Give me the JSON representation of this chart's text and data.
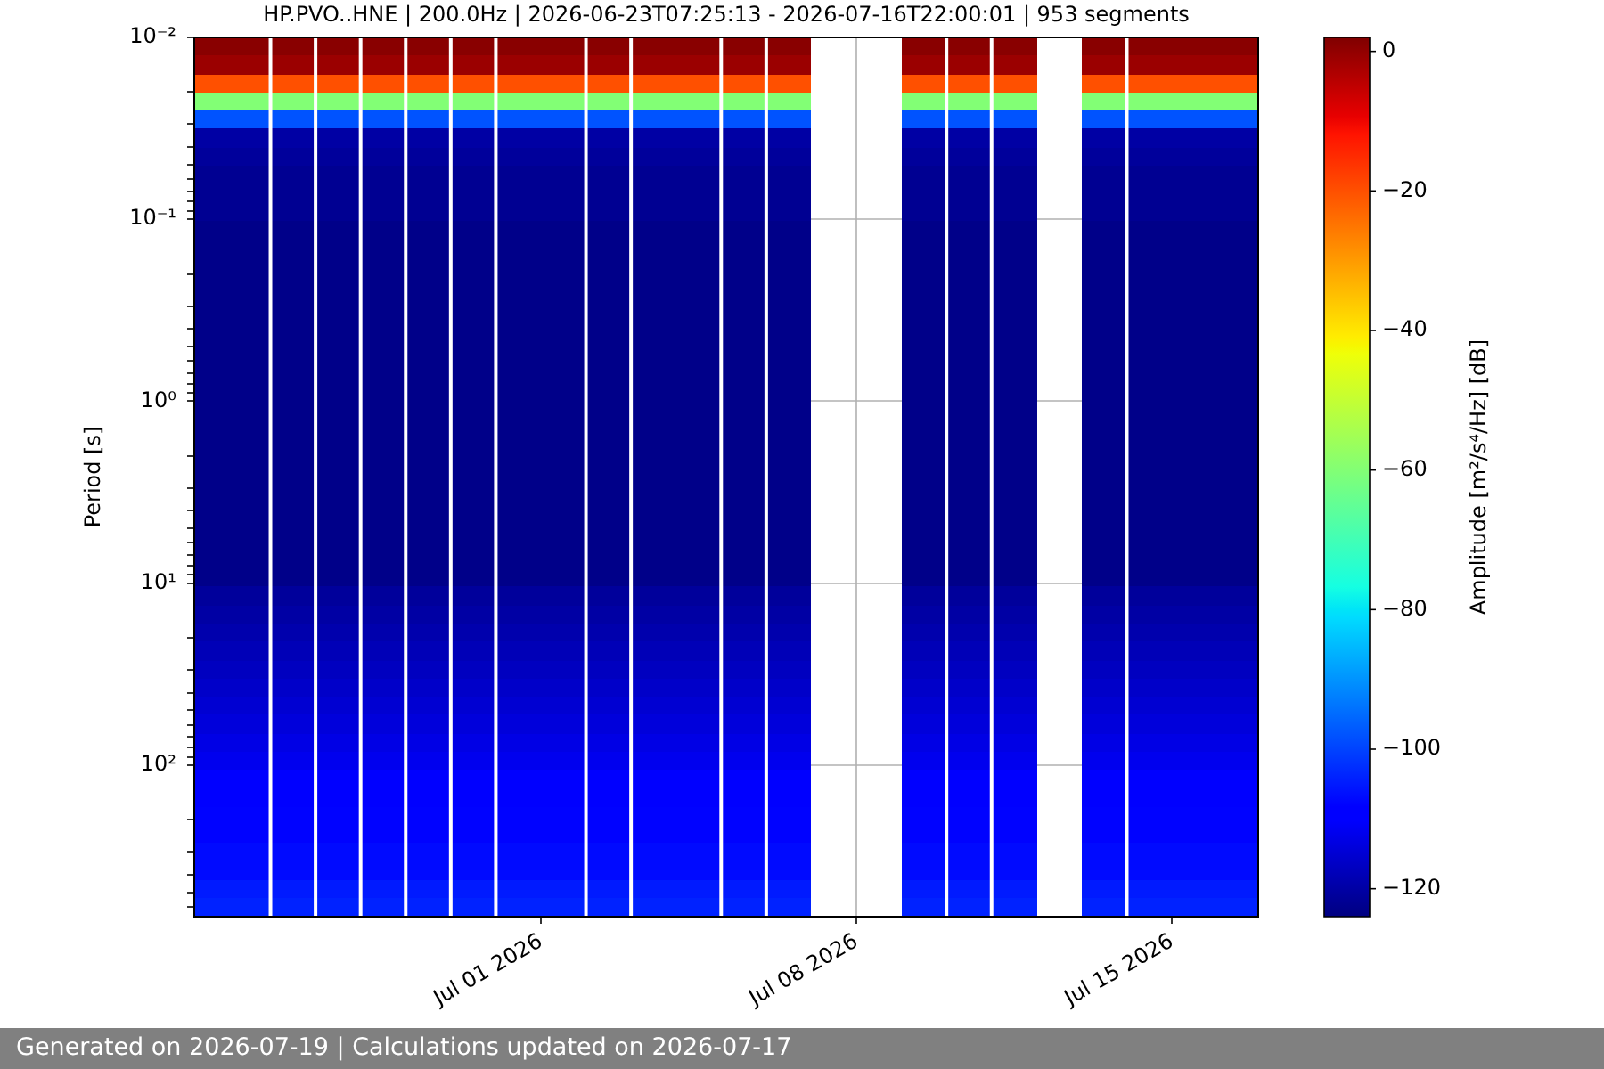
{
  "chart_data": {
    "type": "heatmap",
    "title": "HP.PVO..HNE | 200.0Hz | 2026-06-23T07:25:13 - 2026-07-16T22:00:01 | 953 segments",
    "ylabel": "Period [s]",
    "clabel": "Amplitude [m²/s⁴/Hz] [dB]",
    "annotations": [
      "Generated on 2026-07-19 | Calculations updated on 2026-07-17"
    ],
    "x": [
      "2026-06-23T12:00",
      "2026-06-24T12:00",
      "2026-06-25T12:00",
      "2026-06-26T12:00",
      "2026-06-27T12:00",
      "2026-06-28T12:00",
      "2026-06-29T12:00",
      "2026-06-30T12:00",
      "2026-07-01T12:00",
      "2026-07-02T12:00",
      "2026-07-03T12:00",
      "2026-07-04T12:00",
      "2026-07-05T12:00",
      "2026-07-06T12:00",
      "2026-07-07T12:00",
      "2026-07-08T12:00",
      "2026-07-09T12:00",
      "2026-07-10T12:00",
      "2026-07-11T12:00",
      "2026-07-12T12:00",
      "2026-07-13T12:00",
      "2026-07-14T12:00",
      "2026-07-15T12:00",
      "2026-07-16T12:00"
    ],
    "cells": [
      [
        1,
        1,
        1,
        1,
        1,
        1,
        1,
        1,
        1,
        1,
        1,
        1,
        1,
        1,
        null,
        null,
        1,
        1,
        1,
        null,
        1,
        1,
        1,
        1
      ],
      [
        -1,
        -1,
        -1,
        -1,
        -1,
        -1,
        -1,
        -1,
        -1,
        -1,
        -1,
        -1,
        -1,
        -1,
        null,
        null,
        -1,
        -1,
        -1,
        null,
        -1,
        -1,
        -1,
        -1
      ],
      [
        -20,
        -20,
        -20,
        -20,
        -20,
        -20,
        -20,
        -20,
        -20,
        -20,
        -20,
        -20,
        -20,
        -20,
        null,
        null,
        -20,
        -20,
        -20,
        null,
        -20,
        -20,
        -20,
        -20
      ],
      [
        -60,
        -60,
        -60,
        -60,
        -60,
        -60,
        -60,
        -60,
        -60,
        -60,
        -60,
        -60,
        -60,
        -60,
        null,
        null,
        -60,
        -60,
        -60,
        null,
        -60,
        -60,
        -60,
        -60
      ],
      [
        -98,
        -98,
        -98,
        -98,
        -98,
        -98,
        -98,
        -98,
        -98,
        -98,
        -98,
        -98,
        -98,
        -98,
        null,
        null,
        -98,
        -98,
        -98,
        null,
        -98,
        -98,
        -98,
        -98
      ],
      [
        -120,
        -120,
        -120,
        -120,
        -120,
        -120,
        -120,
        -120,
        -120,
        -120,
        -120,
        -120,
        -120,
        -120,
        null,
        null,
        -120,
        -120,
        -120,
        null,
        -120,
        -120,
        -120,
        -120
      ],
      [
        -121,
        -121,
        -121,
        -121,
        -121,
        -121,
        -121,
        -121,
        -121,
        -121,
        -121,
        -121,
        -121,
        -121,
        null,
        null,
        -121,
        -121,
        -121,
        null,
        -121,
        -121,
        -121,
        -121
      ],
      [
        -122,
        -122,
        -122,
        -122,
        -122,
        -122,
        -122,
        -122,
        -122,
        -122,
        -122,
        -122,
        -122,
        -122,
        null,
        null,
        -122,
        -122,
        -122,
        null,
        -122,
        -122,
        -122,
        -122
      ],
      [
        -122,
        -122,
        -122,
        -122,
        -122,
        -122,
        -122,
        -122,
        -122,
        -122,
        -122,
        -122,
        -122,
        -122,
        null,
        null,
        -122,
        -122,
        -122,
        null,
        -122,
        -122,
        -122,
        -122
      ],
      [
        -122,
        -122,
        -122,
        -122,
        -122,
        -122,
        -122,
        -122,
        -122,
        -122,
        -122,
        -122,
        -122,
        -122,
        null,
        null,
        -122,
        -122,
        -122,
        null,
        -122,
        -122,
        -122,
        -122
      ],
      [
        -123,
        -123,
        -123,
        -123,
        -123,
        -123,
        -123,
        -123,
        -123,
        -123,
        -123,
        -123,
        -123,
        -123,
        null,
        null,
        -123,
        -123,
        -123,
        null,
        -123,
        -123,
        -123,
        -123
      ],
      [
        -123,
        -123,
        -123,
        -123,
        -123,
        -123,
        -123,
        -123,
        -123,
        -123,
        -123,
        -123,
        -123,
        -123,
        null,
        null,
        -123,
        -123,
        -123,
        null,
        -123,
        -123,
        -123,
        -123
      ],
      [
        -123,
        -123,
        -123,
        -123,
        -123,
        -123,
        -123,
        -123,
        -123,
        -123,
        -123,
        -123,
        -123,
        -123,
        null,
        null,
        -123,
        -123,
        -123,
        null,
        -123,
        -123,
        -123,
        -123
      ],
      [
        -123,
        -123,
        -123,
        -123,
        -123,
        -123,
        -123,
        -123,
        -123,
        -123,
        -123,
        -123,
        -123,
        -123,
        null,
        null,
        -123,
        -123,
        -123,
        null,
        -123,
        -123,
        -123,
        -123
      ],
      [
        -123,
        -123,
        -123,
        -123,
        -123,
        -123,
        -123,
        -123,
        -123,
        -123,
        -123,
        -123,
        -123,
        -123,
        null,
        null,
        -123,
        -123,
        -123,
        null,
        -123,
        -123,
        -123,
        -123
      ],
      [
        -123,
        -123,
        -123,
        -123,
        -123,
        -123,
        -123,
        -123,
        -123,
        -123,
        -123,
        -123,
        -123,
        -123,
        null,
        null,
        -123,
        -123,
        -123,
        null,
        -123,
        -123,
        -123,
        -123
      ],
      [
        -123,
        -123,
        -123,
        -123,
        -123,
        -123,
        -123,
        -123,
        -123,
        -123,
        -123,
        -123,
        -123,
        -123,
        null,
        null,
        -123,
        -123,
        -123,
        null,
        -123,
        -123,
        -123,
        -123
      ],
      [
        -123,
        -123,
        -123,
        -123,
        -123,
        -123,
        -123,
        -123,
        -123,
        -123,
        -123,
        -123,
        -123,
        -123,
        null,
        null,
        -123,
        -123,
        -123,
        null,
        -123,
        -123,
        -123,
        -123
      ],
      [
        -123,
        -123,
        -123,
        -123,
        -123,
        -123,
        -123,
        -123,
        -123,
        -123,
        -123,
        -123,
        -123,
        -123,
        null,
        null,
        -123,
        -123,
        -123,
        null,
        -123,
        -123,
        -123,
        -123
      ],
      [
        -123,
        -123,
        -123,
        -123,
        -123,
        -123,
        -123,
        -123,
        -123,
        -123,
        -123,
        -123,
        -123,
        -123,
        null,
        null,
        -123,
        -123,
        -123,
        null,
        -123,
        -123,
        -123,
        -123
      ],
      [
        -123,
        -123,
        -123,
        -123,
        -123,
        -123,
        -123,
        -123,
        -123,
        -123,
        -123,
        -123,
        -123,
        -123,
        null,
        null,
        -123,
        -123,
        -123,
        null,
        -123,
        -123,
        -123,
        -123
      ],
      [
        -123,
        -123,
        -123,
        -123,
        -123,
        -123,
        -123,
        -123,
        -123,
        -123,
        -123,
        -123,
        -123,
        -123,
        null,
        null,
        -123,
        -123,
        -123,
        null,
        -123,
        -123,
        -123,
        -123
      ],
      [
        -123,
        -123,
        -123,
        -123,
        -123,
        -123,
        -123,
        -123,
        -123,
        -123,
        -123,
        -123,
        -123,
        -123,
        null,
        null,
        -123,
        -123,
        -123,
        null,
        -123,
        -123,
        -123,
        -123
      ],
      [
        -123,
        -123,
        -123,
        -123,
        -123,
        -123,
        -123,
        -123,
        -123,
        -123,
        -123,
        -123,
        -123,
        -123,
        null,
        null,
        -123,
        -123,
        -123,
        null,
        -123,
        -123,
        -123,
        -123
      ],
      [
        -123,
        -123,
        -123,
        -123,
        -123,
        -123,
        -123,
        -123,
        -123,
        -123,
        -123,
        -123,
        -123,
        -123,
        null,
        null,
        -123,
        -123,
        -123,
        null,
        -123,
        -123,
        -123,
        -123
      ],
      [
        -123,
        -123,
        -123,
        -123,
        -123,
        -123,
        -123,
        -123,
        -123,
        -123,
        -123,
        -123,
        -123,
        -123,
        null,
        null,
        -123,
        -123,
        -123,
        null,
        -123,
        -123,
        -123,
        -123
      ],
      [
        -123,
        -123,
        -123,
        -123,
        -123,
        -123,
        -123,
        -123,
        -123,
        -123,
        -123,
        -123,
        -123,
        -123,
        null,
        null,
        -123,
        -123,
        -123,
        null,
        -123,
        -123,
        -123,
        -123
      ],
      [
        -123,
        -123,
        -123,
        -123,
        -123,
        -123,
        -123,
        -123,
        -123,
        -123,
        -123,
        -123,
        -123,
        -123,
        null,
        null,
        -123,
        -123,
        -123,
        null,
        -123,
        -123,
        -123,
        -123
      ],
      [
        -123,
        -123,
        -123,
        -123,
        -123,
        -123,
        -123,
        -123,
        -123,
        -123,
        -123,
        -123,
        -123,
        -123,
        null,
        null,
        -123,
        -123,
        -123,
        null,
        -123,
        -123,
        -123,
        -123
      ],
      [
        -123,
        -123,
        -123,
        -123,
        -123,
        -123,
        -123,
        -123,
        -123,
        -123,
        -123,
        -123,
        -123,
        -123,
        null,
        null,
        -123,
        -123,
        -123,
        null,
        -123,
        -123,
        -123,
        -123
      ],
      [
        -121,
        -121,
        -121,
        -121,
        -121,
        -121,
        -121,
        -121,
        -121,
        -121,
        -121,
        -121,
        -121,
        -121,
        null,
        null,
        -121,
        -121,
        -121,
        null,
        -121,
        -121,
        -121,
        -121
      ],
      [
        -120,
        -120,
        -120,
        -120,
        -120,
        -120,
        -120,
        -120,
        -120,
        -120,
        -120,
        -120,
        -120,
        -120,
        null,
        null,
        -120,
        -120,
        -120,
        null,
        -120,
        -120,
        -120,
        -120
      ],
      [
        -119,
        -119,
        -119,
        -119,
        -119,
        -119,
        -119,
        -119,
        -119,
        -119,
        -119,
        -119,
        -119,
        -119,
        null,
        null,
        -119,
        -119,
        -119,
        null,
        -119,
        -119,
        -119,
        -119
      ],
      [
        -118,
        -118,
        -118,
        -118,
        -118,
        -118,
        -118,
        -118,
        -118,
        -118,
        -118,
        -118,
        -118,
        -118,
        null,
        null,
        -118,
        -118,
        -118,
        null,
        -118,
        -118,
        -118,
        -118
      ],
      [
        -117,
        -117,
        -117,
        -117,
        -117,
        -117,
        -117,
        -117,
        -117,
        -117,
        -117,
        -117,
        -117,
        -117,
        null,
        null,
        -117,
        -117,
        -117,
        null,
        -117,
        -117,
        -117,
        -117
      ],
      [
        -116,
        -116,
        -116,
        -116,
        -116,
        -116,
        -116,
        -116,
        -116,
        -116,
        -116,
        -116,
        -116,
        -116,
        null,
        null,
        -116,
        -116,
        -116,
        null,
        -116,
        -116,
        -116,
        -116
      ],
      [
        -115,
        -115,
        -115,
        -115,
        -115,
        -115,
        -115,
        -115,
        -115,
        -115,
        -115,
        -115,
        -115,
        -115,
        null,
        null,
        -115,
        -115,
        -115,
        null,
        -115,
        -115,
        -115,
        -115
      ],
      [
        -114,
        -114,
        -114,
        -114,
        -114,
        -114,
        -114,
        -114,
        -114,
        -114,
        -114,
        -114,
        -114,
        -114,
        null,
        null,
        -114,
        -114,
        -114,
        null,
        -114,
        -114,
        -114,
        -114
      ],
      [
        -113,
        -113,
        -113,
        -113,
        -113,
        -113,
        -113,
        -113,
        -113,
        -113,
        -113,
        -113,
        -113,
        -113,
        null,
        null,
        -113,
        -113,
        -113,
        null,
        -113,
        -113,
        -113,
        -113
      ],
      [
        -112,
        -112,
        -112,
        -112,
        -112,
        -112,
        -112,
        -112,
        -112,
        -112,
        -112,
        -112,
        -112,
        -112,
        null,
        null,
        -112,
        -112,
        -112,
        null,
        -112,
        -112,
        -112,
        -112
      ],
      [
        -110,
        -110,
        -110,
        -110,
        -110,
        -110,
        -110,
        -110,
        -110,
        -110,
        -110,
        -110,
        -110,
        -110,
        null,
        null,
        -110,
        -110,
        -110,
        null,
        -110,
        -110,
        -110,
        -110
      ],
      [
        -109,
        -109,
        -109,
        -109,
        -109,
        -109,
        -109,
        -109,
        -109,
        -109,
        -109,
        -109,
        -109,
        -109,
        null,
        null,
        -109,
        -109,
        -109,
        null,
        -109,
        -109,
        -109,
        -109
      ],
      [
        -108,
        -108,
        -108,
        -108,
        -108,
        -108,
        -108,
        -108,
        -108,
        -108,
        -108,
        -108,
        -108,
        -108,
        null,
        null,
        -108,
        -108,
        -108,
        null,
        -108,
        -108,
        -108,
        -108
      ],
      [
        -108,
        -108,
        -108,
        -108,
        -108,
        -108,
        -108,
        -108,
        -108,
        -108,
        -108,
        -108,
        -108,
        -108,
        null,
        null,
        -108,
        -108,
        -108,
        null,
        -108,
        -108,
        -108,
        -108
      ],
      [
        -107,
        -107,
        -107,
        -107,
        -107,
        -107,
        -107,
        -107,
        -107,
        -107,
        -107,
        -107,
        -107,
        -107,
        null,
        null,
        -107,
        -107,
        -107,
        null,
        -107,
        -107,
        -107,
        -107
      ],
      [
        -107,
        -107,
        -107,
        -107,
        -107,
        -107,
        -107,
        -107,
        -107,
        -107,
        -107,
        -107,
        -107,
        -107,
        null,
        null,
        -107,
        -107,
        -107,
        null,
        -107,
        -107,
        -107,
        -107
      ],
      [
        -105,
        -105,
        -105,
        -105,
        -105,
        -105,
        -105,
        -105,
        -105,
        -105,
        -105,
        -105,
        -105,
        -105,
        null,
        null,
        -105,
        -105,
        -105,
        null,
        -105,
        -105,
        -105,
        -105
      ],
      [
        -104,
        -104,
        -104,
        -104,
        -104,
        -104,
        -104,
        -104,
        -104,
        -104,
        -104,
        -104,
        -104,
        -104,
        null,
        null,
        -104,
        -104,
        -104,
        null,
        -104,
        -104,
        -104,
        -104
      ]
    ],
    "clim": [
      -124,
      2
    ],
    "cticks": [
      {
        "value": -120,
        "label": "−120"
      },
      {
        "value": -100,
        "label": "−100"
      },
      {
        "value": -80,
        "label": "−80"
      },
      {
        "value": -60,
        "label": "−60"
      },
      {
        "value": -40,
        "label": "−40"
      },
      {
        "value": -20,
        "label": "−20"
      },
      0
    ],
    "ref_lines": [
      {
        "axis": "x",
        "value": "2026-06-25",
        "color": "#ffffff"
      },
      {
        "axis": "x",
        "value": "2026-06-26",
        "color": "#ffffff"
      },
      {
        "axis": "x",
        "value": "2026-06-27",
        "color": "#ffffff"
      },
      {
        "axis": "x",
        "value": "2026-06-28",
        "color": "#ffffff"
      },
      {
        "axis": "x",
        "value": "2026-06-29",
        "color": "#ffffff"
      },
      {
        "axis": "x",
        "value": "2026-06-30",
        "color": "#ffffff"
      },
      {
        "axis": "x",
        "value": "2026-07-02",
        "color": "#ffffff"
      },
      {
        "axis": "x",
        "value": "2026-07-03",
        "color": "#ffffff"
      },
      {
        "axis": "x",
        "value": "2026-07-05",
        "color": "#ffffff"
      },
      {
        "axis": "x",
        "value": "2026-07-06",
        "color": "#ffffff"
      },
      {
        "axis": "x",
        "value": "2026-07-10",
        "color": "#ffffff"
      },
      {
        "axis": "x",
        "value": "2026-07-11",
        "color": "#ffffff"
      },
      {
        "axis": "x",
        "value": "2026-07-14",
        "color": "#ffffff"
      }
    ],
    "xlim": [
      "2026-06-23T07:25",
      "2026-07-16T22:00"
    ],
    "xticks": [
      {
        "value": "2026-07-01",
        "label": "Jul 01 2026"
      },
      {
        "value": "2026-07-08",
        "label": "Jul 08 2026"
      },
      {
        "value": "2026-07-15",
        "label": "Jul 15 2026"
      }
    ],
    "ylim": [
      680,
      0.01
    ],
    "yticks": [
      {
        "value": 0.01,
        "label": "10⁻²"
      },
      {
        "value": 0.02,
        "label": null
      },
      {
        "value": 0.03,
        "label": null
      },
      {
        "value": 0.04,
        "label": null
      },
      {
        "value": 0.05,
        "label": null
      },
      {
        "value": 0.06,
        "label": null
      },
      {
        "value": 0.07,
        "label": null
      },
      {
        "value": 0.08,
        "label": null
      },
      {
        "value": 0.09,
        "label": null
      },
      {
        "value": 0.1,
        "label": "10⁻¹"
      },
      {
        "value": 0.2,
        "label": null
      },
      {
        "value": 0.3,
        "label": null
      },
      {
        "value": 0.4,
        "label": null
      },
      {
        "value": 0.5,
        "label": null
      },
      {
        "value": 0.6,
        "label": null
      },
      {
        "value": 0.7,
        "label": null
      },
      {
        "value": 0.8,
        "label": null
      },
      {
        "value": 0.9,
        "label": null
      },
      {
        "value": 1,
        "label": "10⁰"
      },
      {
        "value": 2,
        "label": null
      },
      {
        "value": 3,
        "label": null
      },
      {
        "value": 4,
        "label": null
      },
      {
        "value": 5,
        "label": null
      },
      {
        "value": 6,
        "label": null
      },
      {
        "value": 7,
        "label": null
      },
      {
        "value": 8,
        "label": null
      },
      {
        "value": 9,
        "label": null
      },
      {
        "value": 10,
        "label": "10¹"
      },
      {
        "value": 20,
        "label": null
      },
      {
        "value": 30,
        "label": null
      },
      {
        "value": 40,
        "label": null
      },
      {
        "value": 50,
        "label": null
      },
      {
        "value": 60,
        "label": null
      },
      {
        "value": 70,
        "label": null
      },
      {
        "value": 80,
        "label": null
      },
      {
        "value": 90,
        "label": null
      },
      {
        "value": 100,
        "label": "10²"
      },
      {
        "value": 200,
        "label": null
      },
      {
        "value": 300,
        "label": null
      },
      {
        "value": 400,
        "label": null
      },
      {
        "value": 500,
        "label": null
      },
      {
        "value": 600,
        "label": null
      }
    ],
    "log": "y",
    "grid": true
  }
}
